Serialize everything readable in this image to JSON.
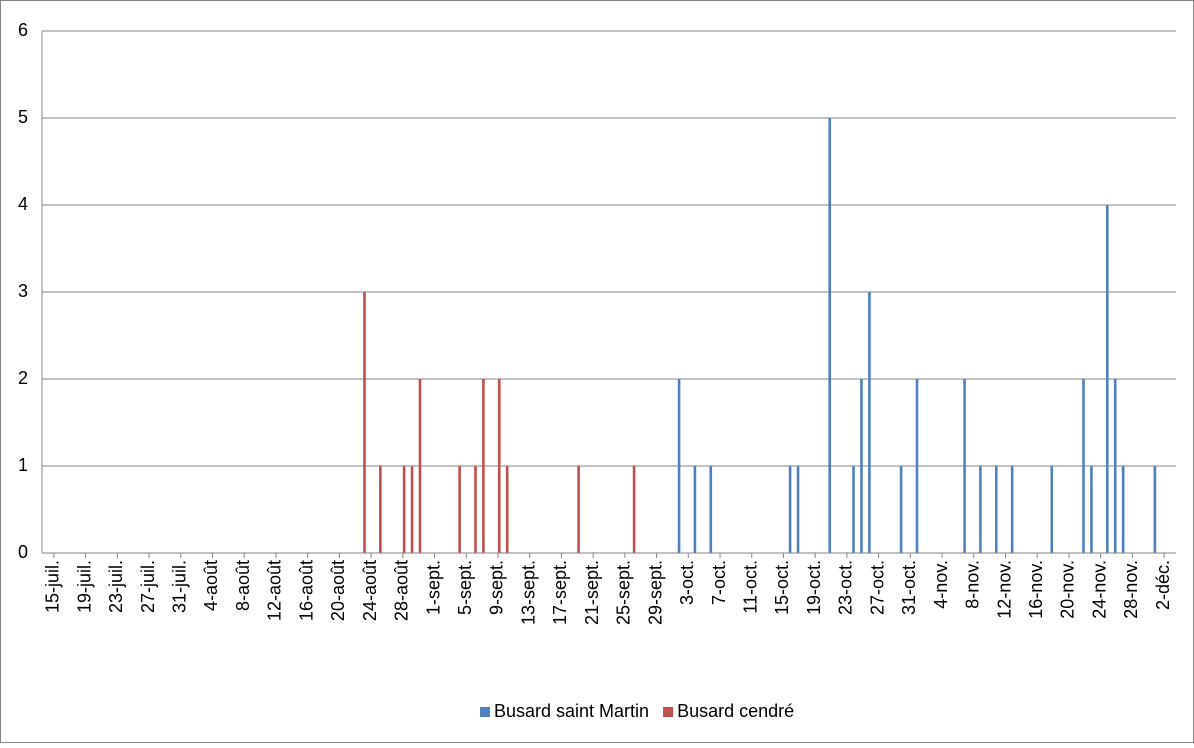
{
  "chart_data": {
    "type": "bar",
    "grid": true,
    "legend": "bottom",
    "ylim": [
      0,
      6
    ],
    "yticks": [
      0,
      1,
      2,
      3,
      4,
      5,
      6
    ],
    "categories": [
      null,
      "15-juil.",
      null,
      null,
      null,
      "19-juil.",
      null,
      null,
      null,
      "23-juil.",
      null,
      null,
      null,
      "27-juil.",
      null,
      null,
      null,
      "31-juil.",
      null,
      null,
      null,
      "4-août",
      null,
      null,
      null,
      "8-août",
      null,
      null,
      null,
      "12-août",
      null,
      null,
      null,
      "16-août",
      null,
      null,
      null,
      "20-août",
      null,
      null,
      null,
      "24-août",
      null,
      null,
      null,
      "28-août",
      null,
      null,
      null,
      "1-sept.",
      null,
      null,
      null,
      "5-sept.",
      null,
      null,
      null,
      "9-sept.",
      null,
      null,
      null,
      "13-sept.",
      null,
      null,
      null,
      "17-sept.",
      null,
      null,
      null,
      "21-sept.",
      null,
      null,
      null,
      "25-sept.",
      null,
      null,
      null,
      "29-sept.",
      null,
      null,
      null,
      "3-oct.",
      null,
      null,
      null,
      "7-oct.",
      null,
      null,
      null,
      "11-oct.",
      null,
      null,
      null,
      "15-oct.",
      null,
      null,
      null,
      "19-oct.",
      null,
      null,
      null,
      "23-oct.",
      null,
      null,
      null,
      "27-oct.",
      null,
      null,
      null,
      "31-oct.",
      null,
      null,
      null,
      "4-nov.",
      null,
      null,
      null,
      "8-nov.",
      null,
      null,
      null,
      "12-nov.",
      null,
      null,
      null,
      "16-nov.",
      null,
      null,
      null,
      "20-nov.",
      null,
      null,
      null,
      "24-nov.",
      null,
      null,
      null,
      "28-nov.",
      null,
      null,
      null,
      "2-déc.",
      null
    ],
    "series": [
      {
        "name": "Busard saint Martin",
        "color": "#4f81bd",
        "values": [
          0,
          0,
          0,
          0,
          0,
          0,
          0,
          0,
          0,
          0,
          0,
          0,
          0,
          0,
          0,
          0,
          0,
          0,
          0,
          0,
          0,
          0,
          0,
          0,
          0,
          0,
          0,
          0,
          0,
          0,
          0,
          0,
          0,
          0,
          0,
          0,
          0,
          0,
          0,
          0,
          0,
          0,
          0,
          0,
          0,
          0,
          0,
          0,
          0,
          0,
          0,
          0,
          0,
          0,
          0,
          0,
          0,
          0,
          0,
          0,
          0,
          0,
          0,
          0,
          0,
          0,
          0,
          0,
          0,
          0,
          0,
          0,
          0,
          0,
          0,
          0,
          0,
          0,
          0,
          0,
          2,
          0,
          1,
          0,
          1,
          0,
          0,
          0,
          0,
          0,
          0,
          0,
          0,
          0,
          1,
          1,
          0,
          0,
          0,
          5,
          0,
          0,
          1,
          2,
          3,
          0,
          0,
          0,
          1,
          0,
          2,
          0,
          0,
          0,
          0,
          0,
          2,
          0,
          1,
          0,
          1,
          0,
          1,
          0,
          0,
          0,
          0,
          1,
          0,
          0,
          0,
          2,
          1,
          0,
          4,
          2,
          1,
          0,
          0,
          0,
          1,
          0,
          0
        ]
      },
      {
        "name": "Busard cendré",
        "color": "#c0504d",
        "values": [
          0,
          0,
          0,
          0,
          0,
          0,
          0,
          0,
          0,
          0,
          0,
          0,
          0,
          0,
          0,
          0,
          0,
          0,
          0,
          0,
          0,
          0,
          0,
          0,
          0,
          0,
          0,
          0,
          0,
          0,
          0,
          0,
          0,
          0,
          0,
          0,
          0,
          0,
          0,
          0,
          3,
          0,
          1,
          0,
          0,
          1,
          1,
          2,
          0,
          0,
          0,
          0,
          1,
          0,
          1,
          2,
          0,
          2,
          1,
          0,
          0,
          0,
          0,
          0,
          0,
          0,
          0,
          1,
          0,
          0,
          0,
          0,
          0,
          0,
          1,
          0,
          0,
          0,
          0,
          0,
          0,
          0,
          0,
          0,
          0,
          0,
          0,
          0,
          0,
          0,
          0,
          0,
          0,
          0,
          0,
          0,
          0,
          0,
          0,
          0,
          0,
          0,
          0,
          0,
          0,
          0,
          0,
          0,
          0,
          0,
          0,
          0,
          0,
          0,
          0,
          0,
          0,
          0,
          0,
          0,
          0,
          0,
          0,
          0,
          0,
          0,
          0,
          0,
          0,
          0,
          0,
          0,
          0,
          0,
          0,
          0,
          0,
          0,
          0,
          0,
          0,
          0,
          0
        ]
      }
    ]
  }
}
